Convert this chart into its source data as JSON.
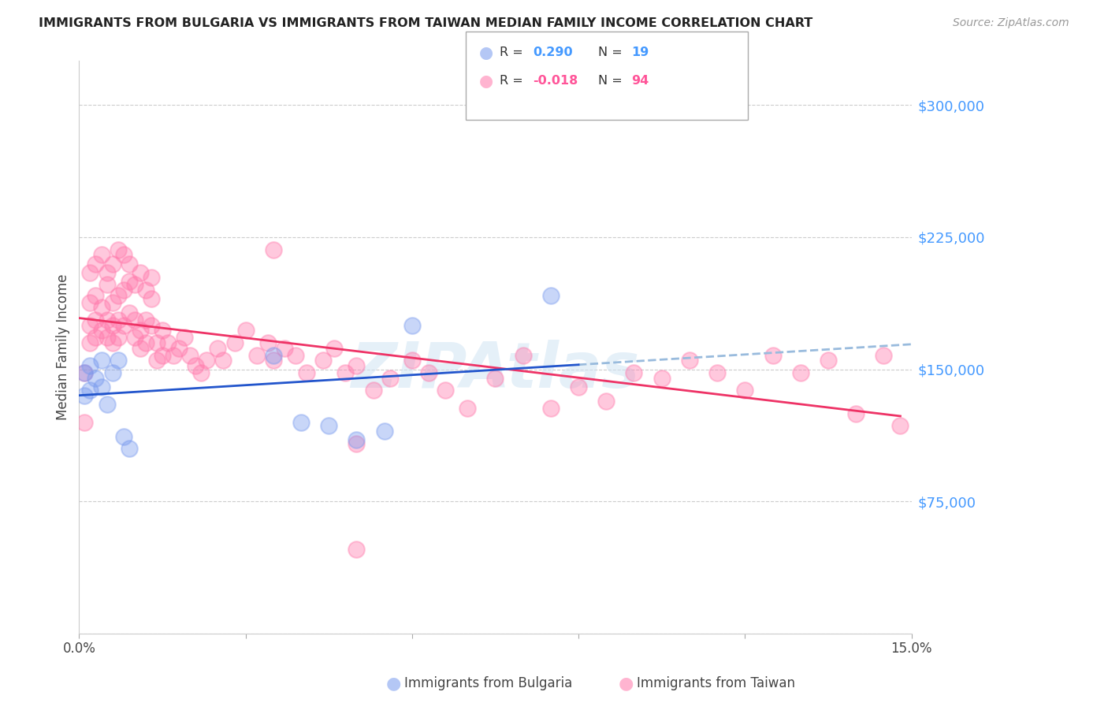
{
  "title": "IMMIGRANTS FROM BULGARIA VS IMMIGRANTS FROM TAIWAN MEDIAN FAMILY INCOME CORRELATION CHART",
  "source": "Source: ZipAtlas.com",
  "ylabel": "Median Family Income",
  "yticks": [
    0,
    75000,
    150000,
    225000,
    300000
  ],
  "ytick_labels": [
    "",
    "$75,000",
    "$150,000",
    "$225,000",
    "$300,000"
  ],
  "xlim": [
    0.0,
    0.15
  ],
  "ylim": [
    0,
    325000
  ],
  "color_bulgaria": "#7799ee",
  "color_taiwan": "#ff77aa",
  "color_trendline_bulgaria": "#2255cc",
  "color_trendline_taiwan": "#ee3366",
  "color_trendline_ext": "#99bbdd",
  "watermark": "ZIPAtlas",
  "legend_r_bulgaria": "R =  0.290",
  "legend_n_bulgaria": "N = 19",
  "legend_r_taiwan": "R = -0.018",
  "legend_n_taiwan": "N = 94",
  "legend_r_bulgaria_colored": "0.290",
  "legend_r_taiwan_colored": "-0.018",
  "legend_n_bulgaria_colored": "19",
  "legend_n_taiwan_colored": "94",
  "bulgaria_x": [
    0.001,
    0.001,
    0.002,
    0.002,
    0.003,
    0.004,
    0.004,
    0.005,
    0.006,
    0.007,
    0.008,
    0.009,
    0.035,
    0.04,
    0.05,
    0.06,
    0.085,
    0.055,
    0.045
  ],
  "bulgaria_y": [
    135000,
    148000,
    138000,
    152000,
    145000,
    140000,
    155000,
    130000,
    148000,
    155000,
    112000,
    105000,
    158000,
    120000,
    110000,
    175000,
    192000,
    115000,
    118000
  ],
  "taiwan_x": [
    0.001,
    0.001,
    0.002,
    0.002,
    0.002,
    0.003,
    0.003,
    0.003,
    0.004,
    0.004,
    0.005,
    0.005,
    0.005,
    0.006,
    0.006,
    0.006,
    0.007,
    0.007,
    0.007,
    0.008,
    0.008,
    0.009,
    0.009,
    0.01,
    0.01,
    0.011,
    0.011,
    0.012,
    0.012,
    0.013,
    0.013,
    0.014,
    0.014,
    0.015,
    0.015,
    0.016,
    0.017,
    0.018,
    0.019,
    0.02,
    0.021,
    0.022,
    0.023,
    0.025,
    0.026,
    0.028,
    0.03,
    0.032,
    0.034,
    0.035,
    0.037,
    0.039,
    0.041,
    0.044,
    0.046,
    0.048,
    0.05,
    0.053,
    0.056,
    0.06,
    0.063,
    0.066,
    0.07,
    0.075,
    0.08,
    0.085,
    0.09,
    0.095,
    0.1,
    0.105,
    0.11,
    0.115,
    0.12,
    0.125,
    0.13,
    0.135,
    0.14,
    0.145,
    0.148,
    0.002,
    0.003,
    0.004,
    0.005,
    0.006,
    0.007,
    0.008,
    0.009,
    0.01,
    0.011,
    0.012,
    0.013,
    0.035,
    0.05,
    0.05
  ],
  "taiwan_y": [
    148000,
    120000,
    175000,
    188000,
    165000,
    178000,
    192000,
    168000,
    185000,
    172000,
    198000,
    178000,
    168000,
    188000,
    175000,
    165000,
    192000,
    178000,
    168000,
    195000,
    175000,
    200000,
    182000,
    168000,
    178000,
    172000,
    162000,
    178000,
    165000,
    190000,
    175000,
    165000,
    155000,
    172000,
    158000,
    165000,
    158000,
    162000,
    168000,
    158000,
    152000,
    148000,
    155000,
    162000,
    155000,
    165000,
    172000,
    158000,
    165000,
    155000,
    162000,
    158000,
    148000,
    155000,
    162000,
    148000,
    152000,
    138000,
    145000,
    155000,
    148000,
    138000,
    128000,
    145000,
    158000,
    128000,
    140000,
    132000,
    148000,
    145000,
    155000,
    148000,
    138000,
    158000,
    148000,
    155000,
    125000,
    158000,
    118000,
    205000,
    210000,
    215000,
    205000,
    210000,
    218000,
    215000,
    210000,
    198000,
    205000,
    195000,
    202000,
    218000,
    108000,
    48000
  ]
}
